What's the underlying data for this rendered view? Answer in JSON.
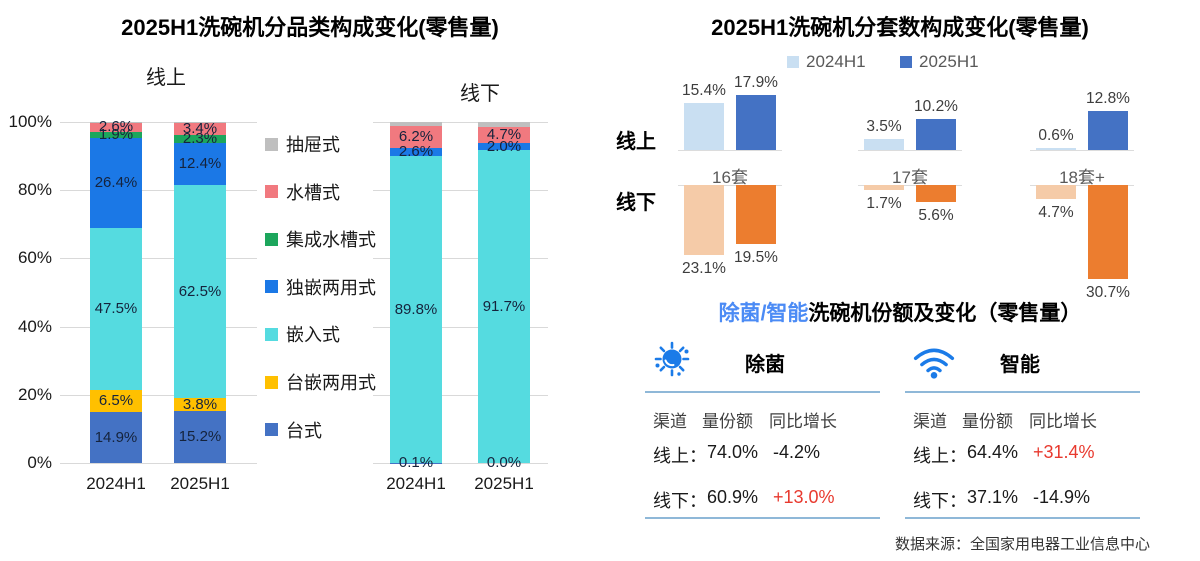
{
  "colors": {
    "accent_red": "#E8392E",
    "title_blue": "#4B8BF5",
    "icon_blue": "#1B7BE8",
    "divider_blue": "#8FB8D8",
    "gridline": "#D9D9D9"
  },
  "source_note": "数据来源：全国家用电器工业信息中心",
  "category_chart": {
    "title": "2025H1洗碗机分品类构成变化(零售量)",
    "group_titles": [
      "线上",
      "线下"
    ],
    "y_ticks": [
      "0%",
      "20%",
      "40%",
      "60%",
      "80%",
      "100%"
    ],
    "x_labels": [
      "2024H1",
      "2025H1"
    ],
    "legend": [
      {
        "label": "抽屉式",
        "color": "#BFBFBF"
      },
      {
        "label": "水槽式",
        "color": "#F1797F"
      },
      {
        "label": "集成水槽式",
        "color": "#1CA65C"
      },
      {
        "label": "独嵌两用式",
        "color": "#1B78E6"
      },
      {
        "label": "嵌入式",
        "color": "#55DBE0"
      },
      {
        "label": "台嵌两用式",
        "color": "#FFC000"
      },
      {
        "label": "台式",
        "color": "#4472C4"
      }
    ]
  },
  "capacity_chart": {
    "title": "2025H1洗碗机分套数构成变化(零售量)",
    "legend": [
      {
        "label": "2024H1",
        "color": "#C9DFF2"
      },
      {
        "label": "2025H1",
        "color": "#4472C4"
      }
    ],
    "row_labels": [
      "线上",
      "线下"
    ],
    "categories": [
      "16套",
      "17套",
      "18套+"
    ]
  },
  "feature_section": {
    "title_highlight": "除菌/智能",
    "title_rest": "洗碗机份额及变化（零售量）",
    "cards": [
      {
        "icon": "germ-icon",
        "name": "除菌",
        "headers": [
          "渠道",
          "量份额",
          "同比增长"
        ],
        "rows": [
          {
            "channel": "线上：",
            "share": "74.0%",
            "growth": "-4.2%",
            "growth_color": "#1A1A1A"
          },
          {
            "channel": "线下：",
            "share": "60.9%",
            "growth": "+13.0%",
            "growth_color": "#E8392E"
          }
        ]
      },
      {
        "icon": "wifi-icon",
        "name": "智能",
        "headers": [
          "渠道",
          "量份额",
          "同比增长"
        ],
        "rows": [
          {
            "channel": "线上：",
            "share": "64.4%",
            "growth": "+31.4%",
            "growth_color": "#E8392E"
          },
          {
            "channel": "线下：",
            "share": "37.1%",
            "growth": "-14.9%",
            "growth_color": "#1A1A1A"
          }
        ]
      }
    ]
  },
  "chart_data": [
    {
      "type": "bar",
      "subtype": "100pct-stacked-column",
      "title": "2025H1洗碗机分品类构成变化(零售量)",
      "unit": "%",
      "ylim": [
        0,
        100
      ],
      "y_ticks": [
        "0%",
        "20%",
        "40%",
        "60%",
        "80%",
        "100%"
      ],
      "grid": true,
      "legend_position": "center-between-groups",
      "stack_order_bottom_to_top": [
        "台式",
        "台嵌两用式",
        "嵌入式",
        "独嵌两用式",
        "集成水槽式",
        "水槽式",
        "抽屉式"
      ],
      "groups": [
        {
          "name": "线上",
          "categories": [
            "2024H1",
            "2025H1"
          ],
          "segments": [
            {
              "name": "台式",
              "values": [
                14.9,
                15.2
              ],
              "labels": [
                "14.9%",
                "15.2%"
              ]
            },
            {
              "name": "台嵌两用式",
              "values": [
                6.5,
                3.8
              ],
              "labels": [
                "6.5%",
                "3.8%"
              ]
            },
            {
              "name": "嵌入式",
              "values": [
                47.5,
                62.5
              ],
              "labels": [
                "47.5%",
                "62.5%"
              ]
            },
            {
              "name": "独嵌两用式",
              "values": [
                26.4,
                12.4
              ],
              "labels": [
                "26.4%",
                "12.4%"
              ]
            },
            {
              "name": "集成水槽式",
              "values": [
                1.9,
                2.3
              ],
              "labels": [
                "1.9%",
                "2.3%"
              ]
            },
            {
              "name": "水槽式",
              "values": [
                2.6,
                3.4
              ],
              "labels": [
                "2.6%",
                "3.4%"
              ]
            },
            {
              "name": "抽屉式",
              "values": [
                0.2,
                0.4
              ],
              "labels": [
                "",
                ""
              ]
            }
          ]
        },
        {
          "name": "线下",
          "categories": [
            "2024H1",
            "2025H1"
          ],
          "segments": [
            {
              "name": "台式",
              "values": [
                0.1,
                0.0
              ],
              "labels": [
                "0.1%",
                "0.0%"
              ]
            },
            {
              "name": "嵌入式",
              "values": [
                89.8,
                91.7
              ],
              "labels": [
                "89.8%",
                "91.7%"
              ]
            },
            {
              "name": "独嵌两用式",
              "values": [
                2.6,
                2.0
              ],
              "labels": [
                "2.6%",
                "2.0%"
              ]
            },
            {
              "name": "水槽式",
              "values": [
                6.2,
                4.7
              ],
              "labels": [
                "6.2%",
                "4.7%"
              ]
            },
            {
              "name": "抽屉式",
              "values": [
                1.3,
                1.6
              ],
              "labels": [
                "",
                ""
              ]
            }
          ]
        }
      ]
    },
    {
      "type": "bar",
      "subtype": "grouped-column-two-rows",
      "title": "2025H1洗碗机分套数构成变化(零售量)",
      "categories": [
        "16套",
        "17套",
        "18套+"
      ],
      "legend": [
        "2024H1",
        "2025H1"
      ],
      "unit": "%",
      "rows": [
        {
          "name": "线上",
          "direction": "up",
          "series": [
            {
              "name": "2024H1",
              "color": "#C9DFF2",
              "values": [
                15.4,
                3.5,
                0.6
              ]
            },
            {
              "name": "2025H1",
              "color": "#4472C4",
              "values": [
                17.9,
                10.2,
                12.8
              ]
            }
          ]
        },
        {
          "name": "线下",
          "direction": "down",
          "series": [
            {
              "name": "2024H1",
              "color": "#F5CBA8",
              "values": [
                23.1,
                1.7,
                4.7
              ]
            },
            {
              "name": "2025H1",
              "color": "#EC7D2F",
              "values": [
                19.5,
                5.6,
                30.7
              ]
            }
          ]
        }
      ]
    },
    {
      "type": "table",
      "title": "除菌/智能洗碗机份额及变化（零售量）",
      "tables": [
        {
          "name": "除菌",
          "columns": [
            "渠道",
            "量份额",
            "同比增长"
          ],
          "rows": [
            [
              "线上",
              "74.0%",
              "-4.2%"
            ],
            [
              "线下",
              "60.9%",
              "+13.0%"
            ]
          ]
        },
        {
          "name": "智能",
          "columns": [
            "渠道",
            "量份额",
            "同比增长"
          ],
          "rows": [
            [
              "线上",
              "64.4%",
              "+31.4%"
            ],
            [
              "线下",
              "37.1%",
              "-14.9%"
            ]
          ]
        }
      ]
    }
  ]
}
